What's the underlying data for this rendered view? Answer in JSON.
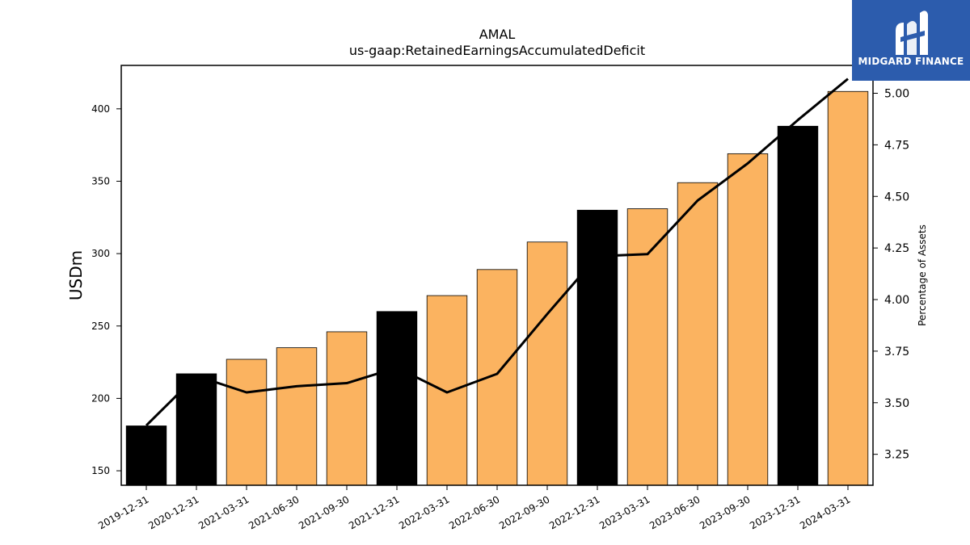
{
  "logo": {
    "text": "MIDGARD FINANCE",
    "icon": "midgard-m-logo-icon",
    "bg_color": "#2c5cad"
  },
  "chart_data": {
    "type": "bar",
    "title": "AMAL",
    "subtitle": "us-gaap:RetainedEarningsAccumulatedDeficit",
    "ylabel": "USDm",
    "y2label": "Percentage of Assets",
    "categories": [
      "2019-12-31",
      "2020-12-31",
      "2021-03-31",
      "2021-06-30",
      "2021-09-30",
      "2021-12-31",
      "2022-03-31",
      "2022-06-30",
      "2022-09-30",
      "2022-12-31",
      "2023-03-31",
      "2023-06-30",
      "2023-09-30",
      "2023-12-31",
      "2024-03-31"
    ],
    "series": [
      {
        "values": [
          181,
          217,
          227,
          235,
          246,
          260,
          271,
          289,
          308,
          330,
          331,
          349,
          369,
          388,
          412
        ],
        "annual_flags": [
          true,
          true,
          false,
          false,
          false,
          true,
          false,
          false,
          false,
          true,
          false,
          false,
          false,
          true,
          false
        ]
      },
      {
        "axis": "right",
        "type": "line",
        "values": [
          3.39,
          3.63,
          3.55,
          3.58,
          3.595,
          3.67,
          3.55,
          3.64,
          3.93,
          4.21,
          4.22,
          4.48,
          4.66,
          4.87,
          5.07
        ]
      }
    ],
    "colors": {
      "annual": "#000000",
      "quarterly": "#fbb360",
      "line": "#000000"
    },
    "ylim": [
      140,
      430
    ],
    "yticks": [
      150,
      200,
      250,
      300,
      350,
      400
    ],
    "y2lim": [
      3.1,
      5.135
    ],
    "y2ticks": [
      "3.25",
      "3.50",
      "3.75",
      "4.00",
      "4.25",
      "4.50",
      "4.75",
      "5.00"
    ],
    "grid": false
  }
}
